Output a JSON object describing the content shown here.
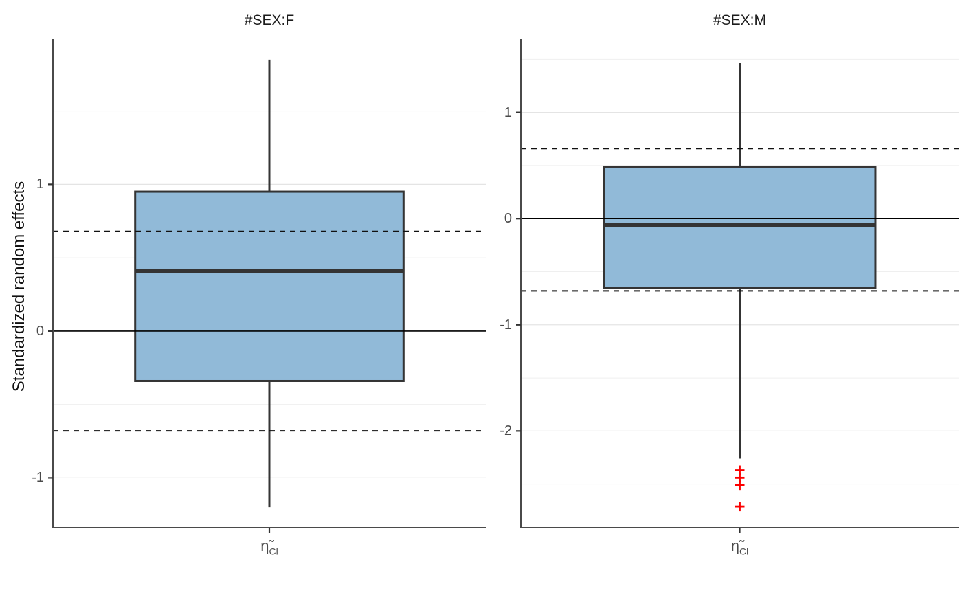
{
  "figure": {
    "ylabel": "Standardized random effects",
    "background": "#ffffff"
  },
  "colors": {
    "box_fill": "#91bad8",
    "box_stroke": "#343434",
    "median_line": "#343434",
    "whisker": "#343434",
    "zero_line": "#000000",
    "dashed_line": "#111111",
    "gridline_major": "#e4e4e4",
    "gridline_minor": "#efefef",
    "axis_line": "#4a4a4a",
    "tick_mark": "#333333",
    "tick_label": "#4a4a4a",
    "panel_title": "#1c1c1c",
    "outlier": "#fc0000"
  },
  "chart_data": [
    {
      "type": "boxplot",
      "panel_title": "#SEX:F",
      "x_category": {
        "base": "η̃",
        "subscript": "Cl"
      },
      "ylabel": "Standardized random effects",
      "ylim": [
        -1.34,
        1.99
      ],
      "yticks": [
        -1,
        0,
        1
      ],
      "minor_grid_step": 0.5,
      "box": {
        "q1": -0.34,
        "median": 0.41,
        "q3": 0.95,
        "whisker_low": -1.2,
        "whisker_high": 1.85
      },
      "reference_lines": {
        "solid": 0,
        "dashed": [
          0.68,
          -0.68
        ]
      },
      "outliers": [],
      "grid": "on",
      "legend": "none"
    },
    {
      "type": "boxplot",
      "panel_title": "#SEX:M",
      "x_category": {
        "base": "η̃",
        "subscript": "Cl"
      },
      "ylabel": "Standardized random effects",
      "ylim": [
        -2.91,
        1.69
      ],
      "yticks": [
        -2,
        -1,
        0,
        1
      ],
      "minor_grid_step": 0.5,
      "box": {
        "q1": -0.65,
        "median": -0.06,
        "q3": 0.49,
        "whisker_low": -2.26,
        "whisker_high": 1.47
      },
      "reference_lines": {
        "solid": 0,
        "dashed": [
          0.66,
          -0.68
        ]
      },
      "outliers": [
        -2.37,
        -2.44,
        -2.51,
        -2.71
      ],
      "grid": "on",
      "legend": "none"
    }
  ]
}
